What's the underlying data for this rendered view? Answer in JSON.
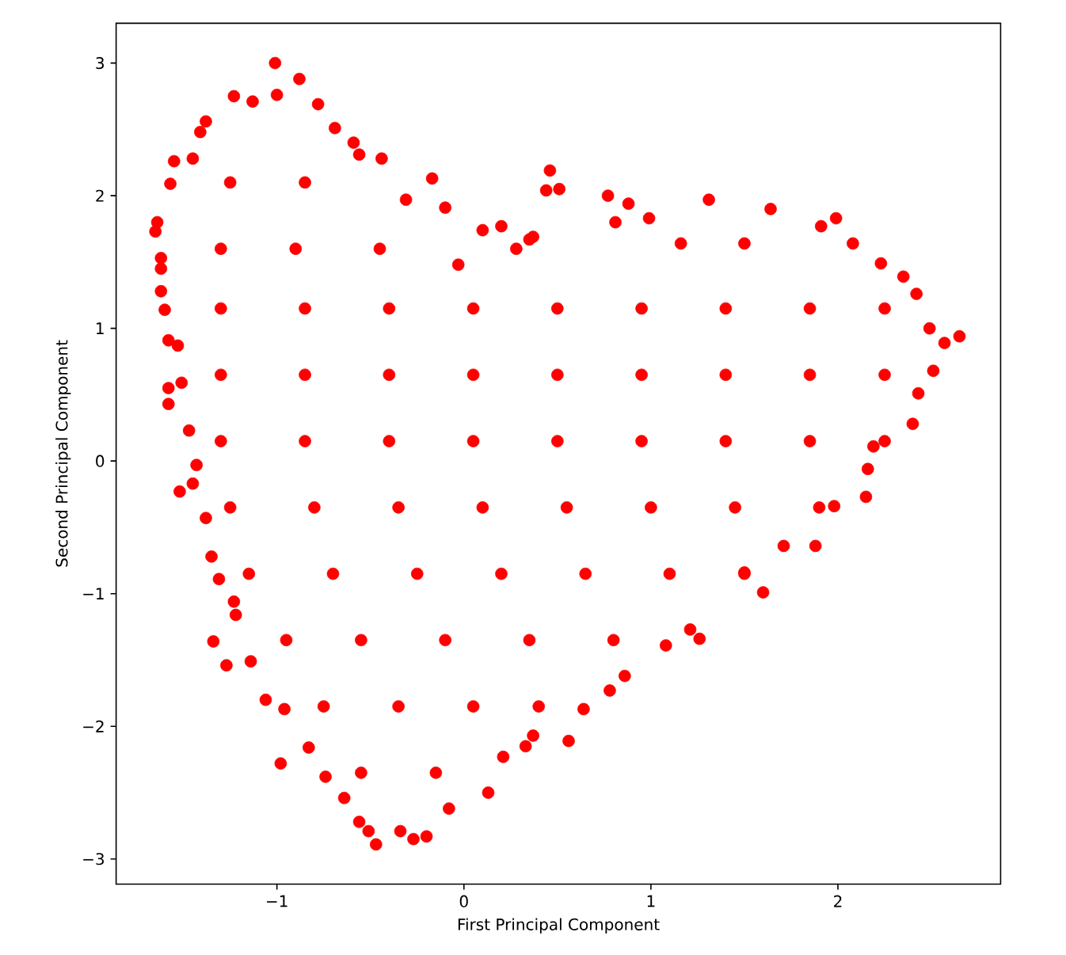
{
  "chart_data": {
    "type": "scatter",
    "xlabel": "First Principal Component",
    "ylabel": "Second Principal Component",
    "color": "#ff0000",
    "xlim": [
      -1.86,
      2.87
    ],
    "ylim": [
      -3.19,
      3.3
    ],
    "xticks": [
      {
        "value": -1,
        "label": "−1"
      },
      0,
      1,
      2
    ],
    "yticks": [
      {
        "value": -3,
        "label": "−3"
      },
      {
        "value": -2,
        "label": "−2"
      },
      {
        "value": -1,
        "label": "−1"
      },
      0,
      1,
      2,
      3
    ],
    "x": [
      -1.01,
      -0.88,
      -1.23,
      -1.0,
      -1.13,
      -0.78,
      -0.69,
      -1.38,
      -1.41,
      -1.45,
      -1.55,
      -1.57,
      -1.65,
      -1.64,
      -1.62,
      -1.62,
      -1.62,
      -1.6,
      -1.58,
      -1.53,
      -1.58,
      -1.58,
      -1.51,
      -1.47,
      -1.43,
      -0.59,
      -0.56,
      -0.44,
      -0.17,
      -0.31,
      -0.1,
      0.1,
      0.2,
      0.46,
      0.44,
      0.51,
      0.35,
      -0.03,
      0.28,
      0.77,
      0.88,
      1.31,
      1.64,
      1.99,
      1.91,
      0.99,
      0.81,
      2.08,
      2.23,
      2.35,
      2.42,
      2.49,
      2.65,
      2.57,
      2.51,
      2.43,
      2.4,
      0.37,
      1.16,
      1.5,
      2.19,
      2.16,
      2.15,
      1.98,
      1.88,
      1.6,
      1.71,
      1.5,
      1.26,
      1.21,
      1.08,
      0.86,
      0.78,
      0.64,
      0.56,
      0.37,
      0.33,
      0.13,
      0.21,
      -0.08,
      -0.2,
      -0.27,
      -0.34,
      -0.47,
      -0.51,
      -0.56,
      -0.64,
      -0.74,
      -0.83,
      -0.98,
      -1.06,
      -0.96,
      -1.14,
      -1.27,
      -1.34,
      -1.22,
      -1.23,
      -1.31,
      -1.35,
      -1.38,
      -1.52,
      -1.45,
      -1.25,
      -0.85,
      -1.3,
      -0.9,
      -0.45,
      -1.3,
      -0.85,
      -0.4,
      0.05,
      0.5,
      0.95,
      1.4,
      1.85,
      2.25,
      -1.3,
      -0.85,
      -0.4,
      0.05,
      0.5,
      0.95,
      1.4,
      1.85,
      2.25,
      -1.3,
      -0.85,
      -0.4,
      0.05,
      0.5,
      0.95,
      1.4,
      1.85,
      2.25,
      -1.25,
      -0.8,
      -0.35,
      0.1,
      0.55,
      1.0,
      1.45,
      1.9,
      -1.15,
      -0.7,
      -0.25,
      0.2,
      0.65,
      1.1,
      1.5,
      -0.95,
      -0.55,
      -0.1,
      0.35,
      0.8,
      -0.75,
      -0.35,
      0.05,
      0.4,
      -0.55,
      -0.15
    ],
    "values": [
      3.0,
      2.88,
      2.75,
      2.76,
      2.71,
      2.69,
      2.51,
      2.56,
      2.48,
      2.28,
      2.26,
      2.09,
      1.73,
      1.8,
      1.53,
      1.45,
      1.28,
      1.14,
      0.91,
      0.87,
      0.55,
      0.43,
      0.59,
      0.23,
      -0.03,
      2.4,
      2.31,
      2.28,
      2.13,
      1.97,
      1.91,
      1.74,
      1.77,
      2.19,
      2.04,
      2.05,
      1.67,
      1.48,
      1.6,
      2.0,
      1.94,
      1.97,
      1.9,
      1.83,
      1.77,
      1.83,
      1.8,
      1.64,
      1.49,
      1.39,
      1.26,
      1.0,
      0.94,
      0.89,
      0.68,
      0.51,
      0.28,
      1.69,
      1.64,
      1.64,
      0.11,
      -0.06,
      -0.27,
      -0.34,
      -0.64,
      -0.99,
      -0.64,
      -0.84,
      -1.34,
      -1.27,
      -1.39,
      -1.62,
      -1.73,
      -1.87,
      -2.11,
      -2.07,
      -2.15,
      -2.5,
      -2.23,
      -2.62,
      -2.83,
      -2.85,
      -2.79,
      -2.89,
      -2.79,
      -2.72,
      -2.54,
      -2.38,
      -2.16,
      -2.28,
      -1.8,
      -1.87,
      -1.51,
      -1.54,
      -1.36,
      -1.16,
      -1.06,
      -0.89,
      -0.72,
      -0.43,
      -0.23,
      -0.17,
      2.1,
      2.1,
      1.6,
      1.6,
      1.6,
      1.15,
      1.15,
      1.15,
      1.15,
      1.15,
      1.15,
      1.15,
      1.15,
      1.15,
      0.65,
      0.65,
      0.65,
      0.65,
      0.65,
      0.65,
      0.65,
      0.65,
      0.65,
      0.15,
      0.15,
      0.15,
      0.15,
      0.15,
      0.15,
      0.15,
      0.15,
      0.15,
      -0.35,
      -0.35,
      -0.35,
      -0.35,
      -0.35,
      -0.35,
      -0.35,
      -0.35,
      -0.85,
      -0.85,
      -0.85,
      -0.85,
      -0.85,
      -0.85,
      -0.85,
      -1.35,
      -1.35,
      -1.35,
      -1.35,
      -1.35,
      -1.85,
      -1.85,
      -1.85,
      -1.85,
      -2.35,
      -2.35
    ]
  }
}
